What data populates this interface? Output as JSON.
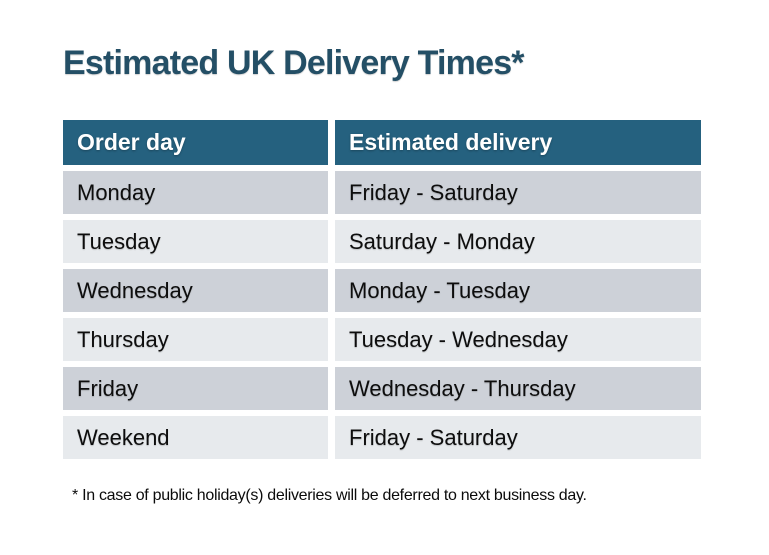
{
  "title": {
    "text": "Estimated UK Delivery Times*"
  },
  "table": {
    "headers": [
      {
        "label": "Order day"
      },
      {
        "label": "Estimated delivery"
      }
    ],
    "rows": [
      {
        "order_day": "Monday",
        "estimated_delivery": "Friday - Saturday"
      },
      {
        "order_day": "Tuesday",
        "estimated_delivery": "Saturday - Monday"
      },
      {
        "order_day": "Wednesday",
        "estimated_delivery": "Monday - Tuesday"
      },
      {
        "order_day": "Thursday",
        "estimated_delivery": "Tuesday - Wednesday"
      },
      {
        "order_day": "Friday",
        "estimated_delivery": "Wednesday - Thursday"
      },
      {
        "order_day": "Weekend",
        "estimated_delivery": "Friday - Saturday"
      }
    ]
  },
  "footnote": {
    "text": "* In case of public holiday(s) deliveries will be deferred to next business day."
  },
  "colors": {
    "page_bg": "#ffffff",
    "title_color": "#244f66",
    "header_bg": "#25617f",
    "header_text": "#ffffff",
    "row_dark": "#cdd1d8",
    "row_light": "#e7eaed"
  },
  "chart_data": {
    "type": "table",
    "title": "Estimated UK Delivery Times*",
    "columns": [
      "Order day",
      "Estimated delivery"
    ],
    "rows": [
      [
        "Monday",
        "Friday - Saturday"
      ],
      [
        "Tuesday",
        "Saturday - Monday"
      ],
      [
        "Wednesday",
        "Monday - Tuesday"
      ],
      [
        "Thursday",
        "Tuesday - Wednesday"
      ],
      [
        "Friday",
        "Wednesday - Thursday"
      ],
      [
        "Weekend",
        "Friday - Saturday"
      ]
    ],
    "footnote": "* In case of public holiday(s) deliveries will be deferred to next business day.",
    "layout_hints": {
      "header_row": true,
      "striped_rows": true,
      "cell_gutters": "white"
    }
  }
}
